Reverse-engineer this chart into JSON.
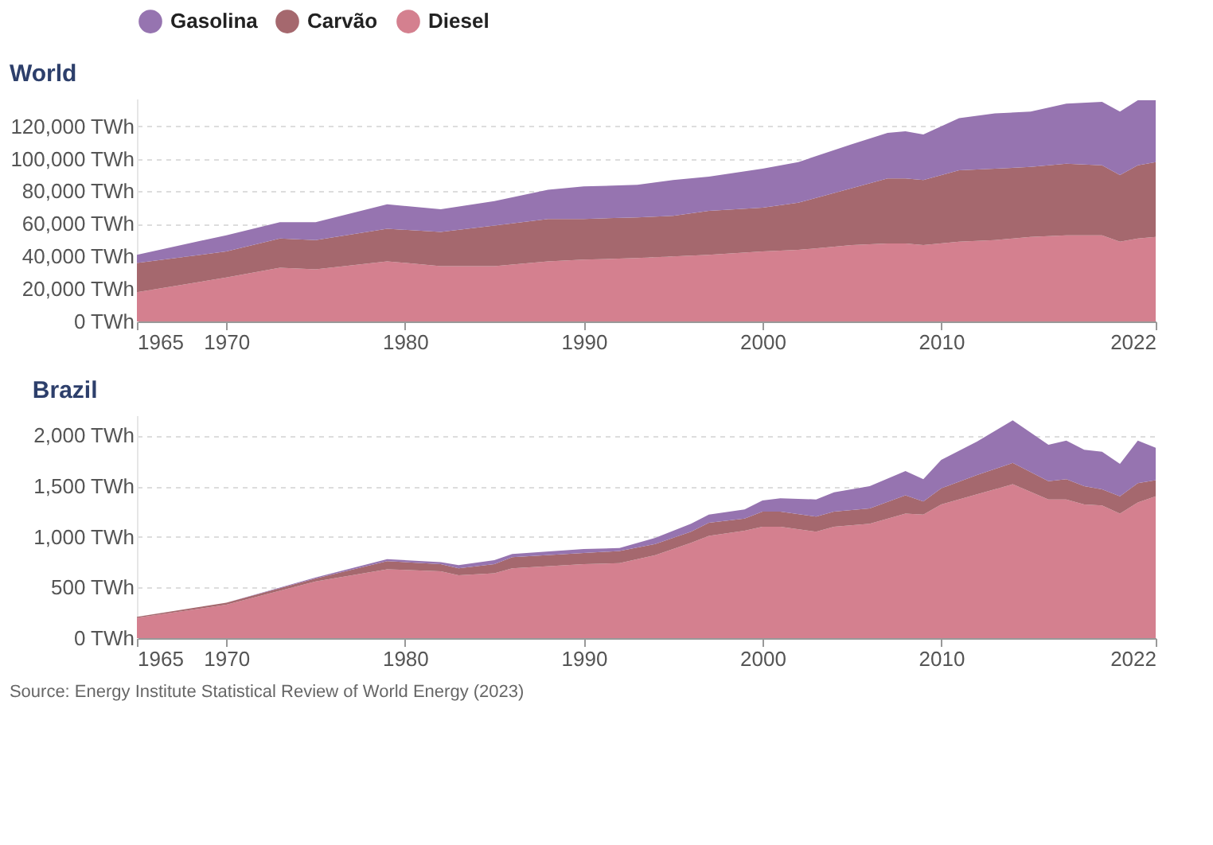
{
  "chart_data": [
    {
      "type": "area",
      "title": "World",
      "stacked": true,
      "legend": "top",
      "grid": "y",
      "x": [
        1965,
        1970,
        1973,
        1975,
        1979,
        1982,
        1985,
        1988,
        1990,
        1993,
        1995,
        1997,
        2000,
        2002,
        2005,
        2007,
        2008,
        2009,
        2011,
        2013,
        2015,
        2017,
        2019,
        2020,
        2021,
        2022
      ],
      "series": [
        {
          "name": "Diesel",
          "color": "#d4808f",
          "values": [
            18000,
            27000,
            33000,
            32000,
            37000,
            34000,
            34000,
            37000,
            38000,
            39000,
            40000,
            41000,
            43000,
            44000,
            47000,
            48000,
            48000,
            47000,
            49000,
            50000,
            52000,
            53000,
            53000,
            49000,
            51000,
            52000
          ]
        },
        {
          "name": "Carvão",
          "color": "#a5686e",
          "values": [
            18000,
            16000,
            18000,
            18000,
            20000,
            21000,
            25000,
            26000,
            25000,
            25000,
            25000,
            27000,
            27000,
            29000,
            35000,
            40000,
            40000,
            40000,
            44000,
            44000,
            43000,
            44000,
            43000,
            41000,
            45000,
            46000
          ]
        },
        {
          "name": "Gasolina",
          "color": "#9674b0",
          "values": [
            5000,
            10000,
            10000,
            11000,
            15000,
            14000,
            15000,
            18000,
            20000,
            20000,
            22000,
            21000,
            24000,
            25000,
            27000,
            28000,
            29000,
            28000,
            32000,
            34000,
            34000,
            37000,
            39000,
            39000,
            40000,
            38000
          ]
        }
      ],
      "xlim": [
        1965,
        2022
      ],
      "xticks": [
        1965,
        1970,
        1980,
        1990,
        2000,
        2010,
        2022
      ],
      "ylim": [
        0,
        137000
      ],
      "yticks": [
        {
          "value": 0,
          "label": "0 TWh"
        },
        {
          "value": 20000,
          "label": "20,000 TWh"
        },
        {
          "value": 40000,
          "label": "40,000 TWh"
        },
        {
          "value": 60000,
          "label": "60,000 TWh"
        },
        {
          "value": 80000,
          "label": "80,000 TWh"
        },
        {
          "value": 100000,
          "label": "100,000 TWh"
        },
        {
          "value": 120000,
          "label": "120,000 TWh"
        }
      ]
    },
    {
      "type": "area",
      "title": "Brazil",
      "stacked": true,
      "legend": false,
      "grid": "y",
      "x": [
        1965,
        1970,
        1975,
        1979,
        1982,
        1983,
        1985,
        1986,
        1990,
        1992,
        1994,
        1996,
        1997,
        1999,
        2000,
        2001,
        2003,
        2004,
        2006,
        2008,
        2009,
        2010,
        2012,
        2014,
        2016,
        2017,
        2018,
        2019,
        2020,
        2021,
        2022
      ],
      "series": [
        {
          "name": "Diesel",
          "color": "#d4808f",
          "values": [
            200,
            330,
            560,
            680,
            660,
            620,
            640,
            690,
            730,
            740,
            820,
            940,
            1010,
            1060,
            1100,
            1100,
            1050,
            1100,
            1130,
            1230,
            1220,
            1320,
            1420,
            1520,
            1370,
            1370,
            1320,
            1310,
            1230,
            1340,
            1400
          ]
        },
        {
          "name": "Carvão",
          "color": "#a5686e",
          "values": [
            10,
            20,
            30,
            80,
            70,
            70,
            90,
            110,
            110,
            120,
            110,
            110,
            130,
            120,
            150,
            150,
            150,
            150,
            150,
            180,
            130,
            160,
            190,
            210,
            180,
            200,
            180,
            160,
            170,
            190,
            160
          ]
        },
        {
          "name": "Gasolina",
          "color": "#9674b0",
          "values": [
            0,
            0,
            10,
            20,
            20,
            30,
            40,
            30,
            40,
            30,
            60,
            80,
            80,
            90,
            110,
            130,
            170,
            190,
            220,
            240,
            220,
            280,
            330,
            420,
            360,
            380,
            360,
            370,
            320,
            420,
            320
          ]
        }
      ],
      "xlim": [
        1965,
        2022
      ],
      "xticks": [
        1965,
        1970,
        1980,
        1990,
        2000,
        2010,
        2022
      ],
      "ylim": [
        0,
        2200
      ],
      "yticks": [
        {
          "value": 0,
          "label": "0 TWh"
        },
        {
          "value": 500,
          "label": "500 TWh"
        },
        {
          "value": 1000,
          "label": "1,000 TWh"
        },
        {
          "value": 1500,
          "label": "1,500 TWh"
        },
        {
          "value": 2000,
          "label": "2,000 TWh"
        }
      ],
      "annotations": [
        "Source: Energy Institute Statistical Review of World Energy (2023)"
      ]
    }
  ]
}
